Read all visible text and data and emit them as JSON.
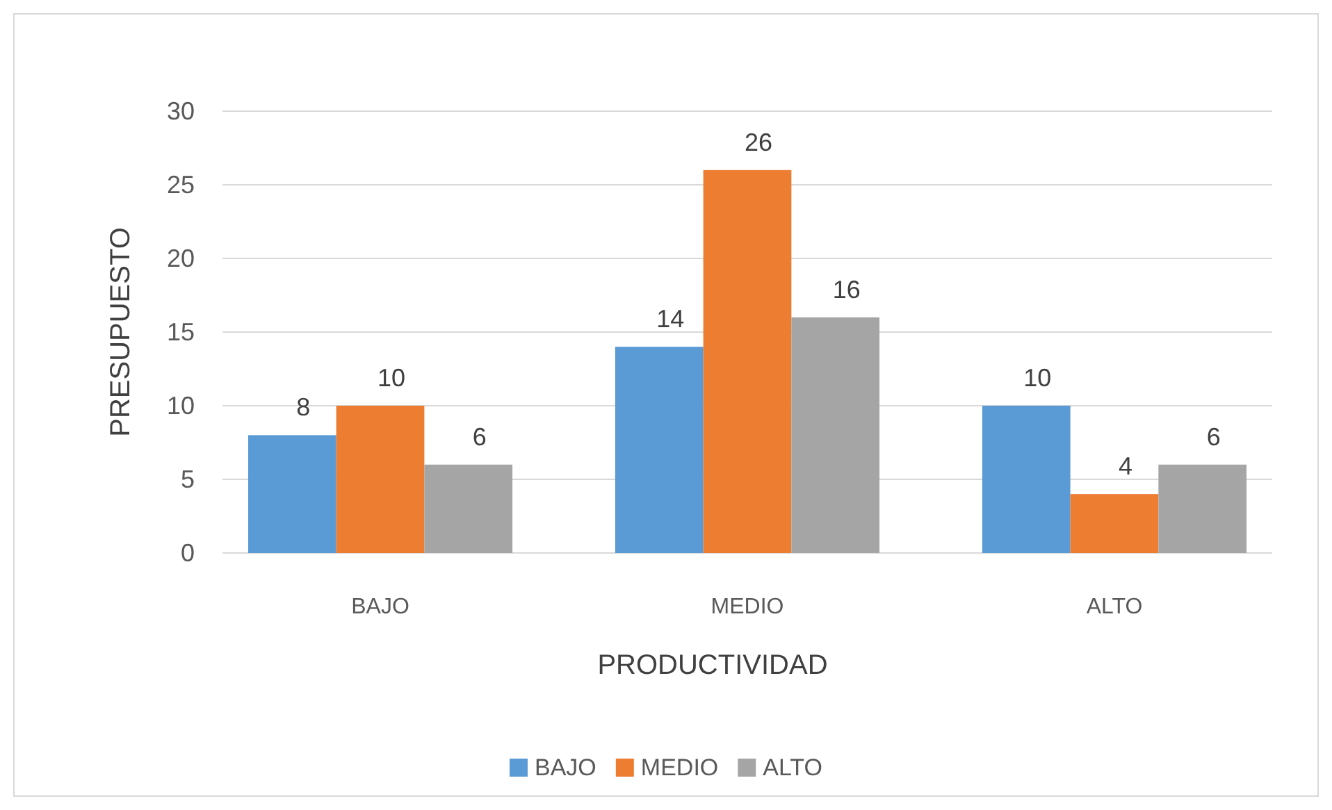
{
  "chart_data": {
    "type": "bar",
    "xlabel": "PRODUCTIVIDAD",
    "ylabel": "PRESUPUESTO",
    "categories": [
      "BAJO",
      "MEDIO",
      "ALTO"
    ],
    "series": [
      {
        "name": "BAJO",
        "color": "#5b9bd5",
        "values": [
          8,
          14,
          10
        ]
      },
      {
        "name": "MEDIO",
        "color": "#ed7d31",
        "values": [
          10,
          26,
          4
        ]
      },
      {
        "name": "ALTO",
        "color": "#a5a5a5",
        "values": [
          6,
          16,
          6
        ]
      }
    ],
    "ylim": [
      0,
      30
    ],
    "yticks": [
      0,
      5,
      10,
      15,
      20,
      25,
      30
    ],
    "grid": "y",
    "legend": "bottom",
    "data_labels": true
  }
}
